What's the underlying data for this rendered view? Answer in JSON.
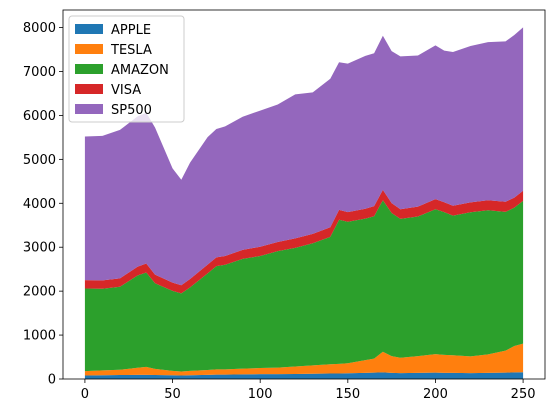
{
  "chart_data": {
    "type": "area",
    "stacked": true,
    "title": "",
    "xlabel": "",
    "ylabel": "",
    "xlim": [
      -12.5,
      262.5
    ],
    "ylim": [
      0,
      8400
    ],
    "x_ticks": [
      0,
      50,
      100,
      150,
      200,
      250
    ],
    "y_ticks": [
      0,
      1000,
      2000,
      3000,
      4000,
      5000,
      6000,
      7000,
      8000
    ],
    "grid": false,
    "legend_position": "top-left",
    "x": [
      0,
      10,
      20,
      30,
      35,
      40,
      50,
      55,
      60,
      70,
      75,
      80,
      90,
      100,
      110,
      120,
      130,
      140,
      145,
      150,
      160,
      165,
      170,
      175,
      180,
      190,
      200,
      205,
      210,
      220,
      230,
      240,
      245,
      250
    ],
    "series": [
      {
        "name": "APPLE",
        "color": "#1f77b4",
        "values": [
          80,
          85,
          90,
          95,
          95,
          90,
          85,
          80,
          85,
          95,
          100,
          100,
          105,
          110,
          110,
          115,
          120,
          125,
          125,
          130,
          140,
          145,
          150,
          140,
          135,
          140,
          145,
          140,
          140,
          135,
          140,
          145,
          150,
          155
        ]
      },
      {
        "name": "TESLA",
        "color": "#ff7f0e",
        "values": [
          100,
          110,
          120,
          160,
          180,
          140,
          100,
          90,
          100,
          110,
          120,
          120,
          130,
          140,
          150,
          170,
          190,
          210,
          220,
          230,
          290,
          320,
          470,
          380,
          350,
          380,
          420,
          410,
          400,
          380,
          420,
          500,
          600,
          650
        ]
      },
      {
        "name": "AMAZON",
        "color": "#2ca02c",
        "values": [
          1880,
          1860,
          1890,
          2100,
          2150,
          1950,
          1820,
          1780,
          1900,
          2200,
          2350,
          2380,
          2500,
          2550,
          2650,
          2700,
          2780,
          2900,
          3280,
          3220,
          3220,
          3240,
          3450,
          3260,
          3160,
          3180,
          3300,
          3250,
          3180,
          3280,
          3280,
          3160,
          3150,
          3250
        ]
      },
      {
        "name": "VISA",
        "color": "#d62728",
        "values": [
          190,
          190,
          190,
          200,
          205,
          195,
          190,
          185,
          190,
          200,
          200,
          200,
          205,
          210,
          210,
          215,
          215,
          220,
          225,
          220,
          225,
          230,
          235,
          225,
          220,
          225,
          230,
          225,
          225,
          225,
          230,
          230,
          230,
          230
        ]
      },
      {
        "name": "SP500",
        "color": "#9467bd",
        "values": [
          3270,
          3290,
          3380,
          3420,
          3430,
          3350,
          2600,
          2400,
          2650,
          2900,
          2920,
          2950,
          3030,
          3100,
          3130,
          3280,
          3220,
          3380,
          3360,
          3380,
          3480,
          3480,
          3510,
          3460,
          3480,
          3440,
          3500,
          3450,
          3500,
          3560,
          3600,
          3650,
          3700,
          3720
        ]
      }
    ]
  }
}
